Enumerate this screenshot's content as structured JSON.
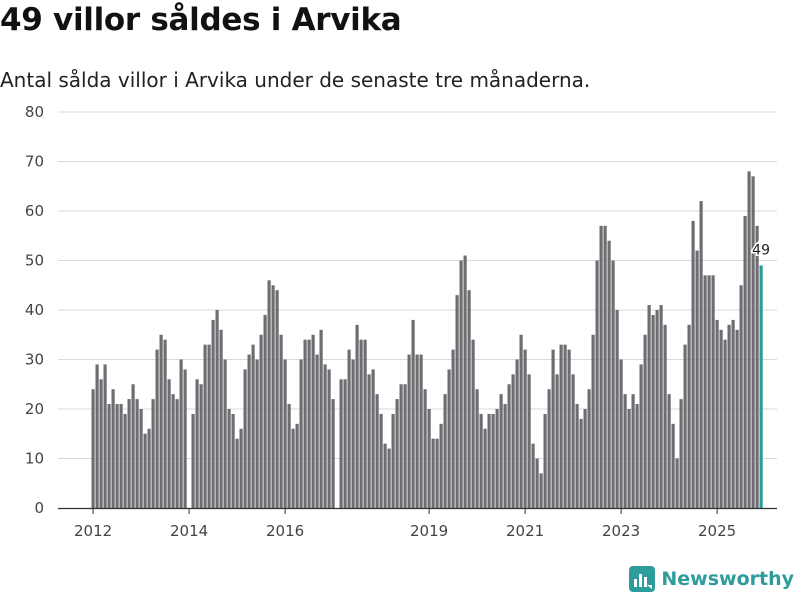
{
  "chart_data": {
    "type": "bar",
    "title": "49 villor såldes i Arvika",
    "subtitle": "Antal sålda villor i Arvika under de senaste tre månaderna.",
    "xlabel": "",
    "ylabel": "",
    "ylim": [
      0,
      80
    ],
    "yticks": [
      0,
      10,
      20,
      30,
      40,
      50,
      60,
      70,
      80
    ],
    "grid": true,
    "x_start": "2012-01",
    "highlight_label": "49",
    "xtick_labels": [
      {
        "label": "2012",
        "month_index": 0
      },
      {
        "label": "2014",
        "month_index": 24
      },
      {
        "label": "2016",
        "month_index": 48
      },
      {
        "label": "2019",
        "month_index": 84
      },
      {
        "label": "2021",
        "month_index": 108
      },
      {
        "label": "2023",
        "month_index": 132
      },
      {
        "label": "2025",
        "month_index": 156
      }
    ],
    "colors": {
      "bar": "#6e6d72",
      "highlight": "#2a9d97",
      "grid": "#d9d9d9",
      "axis": "#333333"
    },
    "values": [
      24,
      29,
      26,
      29,
      21,
      24,
      21,
      21,
      19,
      22,
      25,
      22,
      20,
      15,
      16,
      22,
      32,
      35,
      34,
      26,
      23,
      22,
      30,
      28,
      null,
      19,
      26,
      25,
      33,
      33,
      38,
      40,
      36,
      30,
      20,
      19,
      14,
      16,
      28,
      31,
      33,
      30,
      35,
      39,
      46,
      45,
      44,
      35,
      30,
      21,
      16,
      17,
      30,
      34,
      34,
      35,
      31,
      36,
      29,
      28,
      22,
      null,
      26,
      26,
      32,
      30,
      37,
      34,
      34,
      27,
      28,
      23,
      19,
      13,
      12,
      19,
      22,
      25,
      25,
      31,
      38,
      31,
      31,
      24,
      20,
      14,
      14,
      17,
      23,
      28,
      32,
      43,
      50,
      51,
      44,
      34,
      24,
      19,
      16,
      19,
      19,
      20,
      23,
      21,
      25,
      27,
      30,
      35,
      32,
      27,
      13,
      10,
      7,
      19,
      24,
      32,
      27,
      33,
      33,
      32,
      27,
      21,
      18,
      20,
      24,
      35,
      50,
      57,
      57,
      54,
      50,
      40,
      30,
      23,
      20,
      23,
      21,
      29,
      35,
      41,
      39,
      40,
      41,
      37,
      23,
      17,
      10,
      22,
      33,
      37,
      58,
      52,
      62,
      47,
      47,
      47,
      38,
      36,
      34,
      37,
      38,
      36,
      45,
      59,
      68,
      67,
      57,
      49
    ]
  },
  "brand": {
    "name": "Newsworthy",
    "color": "#2e9c9c"
  }
}
